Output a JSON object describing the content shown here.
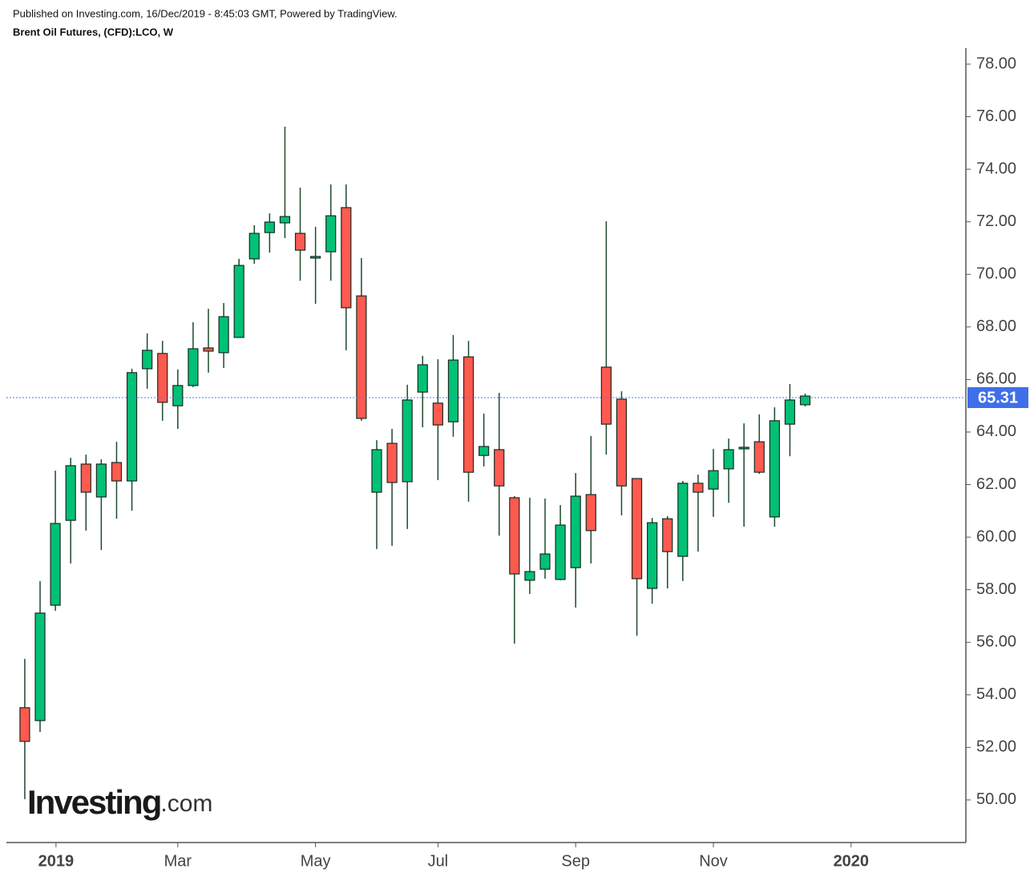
{
  "chart_data": {
    "type": "candlestick",
    "publisher": "Published on Investing.com, 16/Dec/2019 - 8:45:03 GMT, Powered by TradingView.",
    "title": "Brent Oil Futures, (CFD):LCO, W",
    "logo": {
      "brand": "Investing",
      "suffix": ".com"
    },
    "up_color": "#00c176",
    "down_color": "#ff5a4f",
    "open": [
      53.51,
      53.02,
      57.41,
      60.64,
      62.78,
      61.53,
      62.84,
      62.14,
      66.41,
      66.99,
      65.0,
      65.77,
      67.2,
      67.02,
      67.6,
      70.59,
      71.59,
      71.96,
      71.56,
      70.62,
      70.86,
      72.54,
      69.18,
      61.71,
      63.57,
      62.11,
      65.52,
      65.1,
      64.39,
      66.86,
      63.11,
      63.33,
      61.5,
      58.36,
      58.78,
      58.39,
      58.84,
      61.62,
      66.47,
      65.25,
      62.23,
      58.05,
      60.7,
      59.27,
      62.05,
      61.83,
      62.6,
      63.36,
      63.63,
      60.77,
      64.3,
      65.04
    ],
    "high": [
      55.37,
      58.33,
      62.53,
      63.02,
      63.14,
      62.96,
      63.63,
      66.41,
      67.75,
      67.47,
      66.38,
      68.18,
      68.69,
      68.91,
      70.59,
      71.87,
      72.32,
      75.62,
      73.3,
      71.81,
      73.42,
      73.42,
      70.62,
      63.69,
      64.12,
      65.8,
      66.9,
      66.77,
      67.69,
      67.47,
      64.7,
      65.49,
      61.56,
      61.5,
      61.47,
      61.22,
      62.44,
      63.85,
      72.02,
      65.55,
      62.23,
      60.73,
      60.8,
      62.14,
      62.38,
      63.36,
      63.75,
      64.33,
      64.67,
      64.94,
      65.83,
      65.46
    ],
    "low": [
      50.03,
      52.59,
      57.2,
      59.0,
      60.25,
      59.51,
      60.7,
      61.01,
      65.65,
      64.43,
      64.12,
      65.71,
      66.26,
      66.44,
      67.6,
      70.4,
      70.83,
      71.38,
      69.76,
      68.88,
      69.76,
      67.11,
      64.43,
      59.55,
      59.67,
      60.31,
      64.18,
      62.17,
      63.82,
      61.35,
      62.69,
      60.06,
      55.95,
      57.84,
      58.42,
      58.36,
      57.32,
      59.0,
      63.14,
      60.83,
      56.25,
      57.47,
      58.05,
      58.33,
      59.45,
      60.77,
      61.31,
      60.4,
      62.41,
      60.4,
      63.08,
      64.97
    ],
    "close": [
      52.23,
      57.11,
      60.52,
      62.72,
      61.71,
      62.78,
      62.14,
      66.26,
      67.11,
      65.13,
      65.77,
      67.17,
      67.08,
      68.39,
      70.34,
      71.56,
      71.99,
      72.2,
      70.92,
      70.68,
      72.23,
      68.73,
      64.52,
      63.33,
      62.08,
      65.22,
      66.56,
      64.27,
      66.74,
      62.47,
      63.45,
      61.95,
      58.6,
      58.69,
      59.36,
      60.46,
      61.56,
      60.25,
      64.3,
      61.95,
      58.42,
      60.55,
      59.45,
      62.05,
      61.71,
      62.53,
      63.33,
      63.42,
      62.47,
      64.43,
      65.22,
      65.37
    ],
    "last_price": 65.31,
    "xlim": [
      -1.2,
      61.5
    ],
    "xticks": [
      {
        "value": 2.04,
        "label": "2019"
      },
      {
        "value": 10.0,
        "label": "Mar"
      },
      {
        "value": 19.0,
        "label": "May"
      },
      {
        "value": 27.0,
        "label": "Jul"
      },
      {
        "value": 36.0,
        "label": "Sep"
      },
      {
        "value": 45.0,
        "label": "Nov"
      },
      {
        "value": 54.0,
        "label": "2020"
      }
    ],
    "ylim": [
      48.38,
      78.61
    ],
    "yticks": [
      {
        "value": 50,
        "label": "50.00"
      },
      {
        "value": 52,
        "label": "52.00"
      },
      {
        "value": 54,
        "label": "54.00"
      },
      {
        "value": 56,
        "label": "56.00"
      },
      {
        "value": 58,
        "label": "58.00"
      },
      {
        "value": 60,
        "label": "60.00"
      },
      {
        "value": 62,
        "label": "62.00"
      },
      {
        "value": 64,
        "label": "64.00"
      },
      {
        "value": 66,
        "label": "66.00"
      },
      {
        "value": 68,
        "label": "68.00"
      },
      {
        "value": 70,
        "label": "70.00"
      },
      {
        "value": 72,
        "label": "72.00"
      },
      {
        "value": 74,
        "label": "74.00"
      },
      {
        "value": 76,
        "label": "76.00"
      },
      {
        "value": 78,
        "label": "78.00"
      }
    ]
  }
}
